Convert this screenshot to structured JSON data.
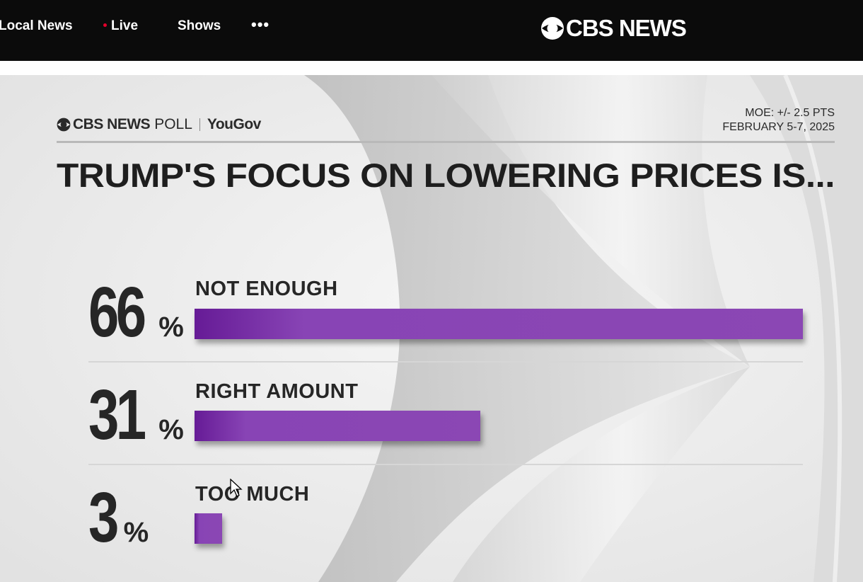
{
  "nav": {
    "items": [
      {
        "label": "Local News"
      },
      {
        "label": "Live"
      },
      {
        "label": "Shows"
      }
    ],
    "more_icon": "more-horizontal-icon",
    "brand": "CBS NEWS"
  },
  "poll": {
    "source_brand": "CBS NEWS",
    "source_word": "POLL",
    "partner": "YouGov",
    "moe": "MOE: +/- 2.5 PTS",
    "dates": "FEBRUARY 5-7, 2025",
    "headline": "TRUMP'S FOCUS ON LOWERING PRICES IS...",
    "percent_sign": "%",
    "bar_color": "#8b47b4"
  },
  "chart_data": {
    "type": "bar",
    "orientation": "horizontal",
    "title": "TRUMP'S FOCUS ON LOWERING PRICES IS...",
    "categories": [
      "NOT ENOUGH",
      "RIGHT AMOUNT",
      "TOO MUCH"
    ],
    "values": [
      66,
      31,
      3
    ],
    "value_labels": [
      "66",
      "31",
      "3"
    ],
    "unit": "%",
    "xlim": [
      0,
      66
    ]
  }
}
